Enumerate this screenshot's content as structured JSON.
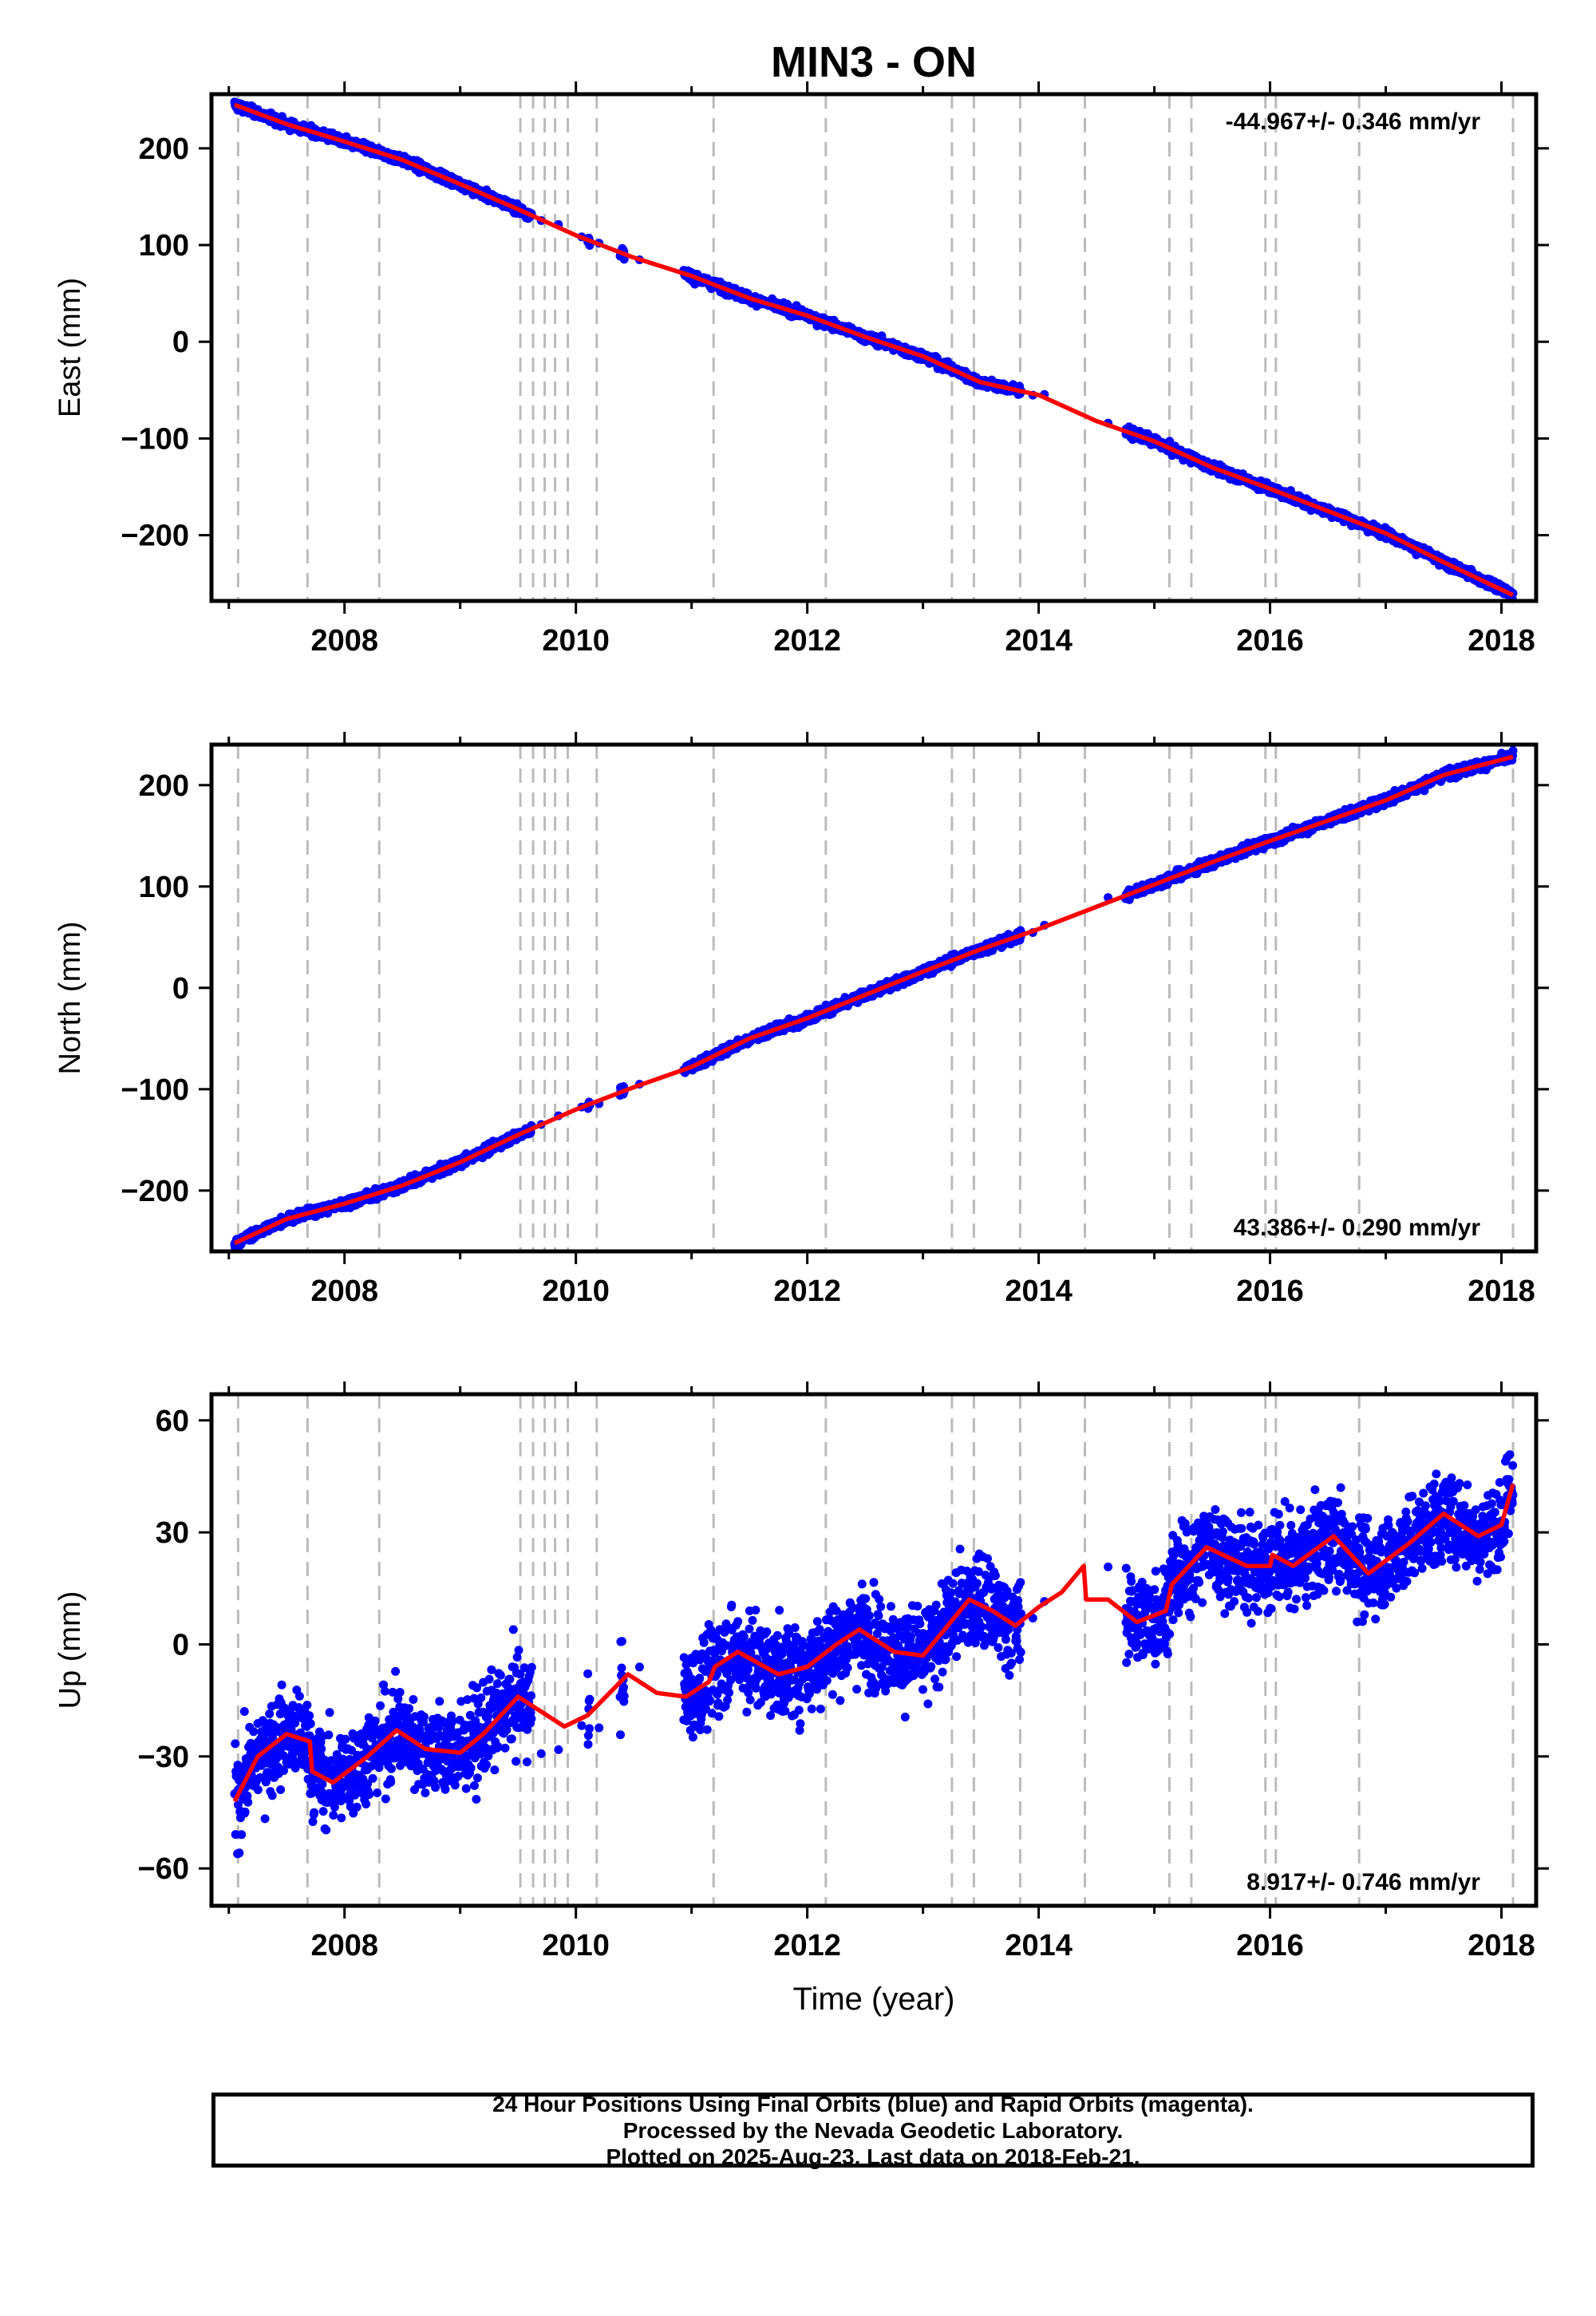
{
  "title": "MIN3 - ON",
  "xlabel": "Time (year)",
  "colors": {
    "data": "#0000ff",
    "model": "#ff0000",
    "break_lines": "#bbbbbb",
    "frame": "#000000"
  },
  "caption": {
    "line1": "24 Hour Positions Using Final Orbits (blue) and Rapid Orbits (magenta).",
    "line2": "Processed by the Nevada Geodetic Laboratory.",
    "line3": "Plotted on 2025-Aug-23. Last data on 2018-Feb-21."
  },
  "chart_data": [
    {
      "type": "scatter",
      "title": "MIN3 - ON",
      "ylabel": "East (mm)",
      "xlabel": "",
      "xlim": [
        2006.85,
        2018.3
      ],
      "ylim": [
        -268,
        256
      ],
      "xticks": [
        2008,
        2010,
        2012,
        2014,
        2016,
        2018
      ],
      "yticks": [
        -200,
        -100,
        0,
        100,
        200
      ],
      "rate_label": "-44.967+/- 0.346 mm/yr",
      "rate_position": "top-right",
      "grid": false,
      "series": [
        {
          "x": [
            2007.05,
            2007.5,
            2008.0,
            2008.5,
            2009.0,
            2009.5,
            2010.0,
            2010.5,
            2011.0,
            2011.5,
            2012.0,
            2012.5,
            2013.0,
            2013.5,
            2014.0,
            2014.5,
            2015.0,
            2015.5,
            2016.0,
            2016.5,
            2017.0,
            2017.5,
            2018.1
          ],
          "y": [
            245,
            225,
            207,
            188,
            163,
            137,
            110,
            87,
            68,
            45,
            27,
            5,
            -15,
            -42,
            -55,
            -82,
            -103,
            -130,
            -152,
            -175,
            -198,
            -228,
            -262
          ]
        }
      ]
    },
    {
      "type": "scatter",
      "title": "",
      "ylabel": "North (mm)",
      "xlabel": "",
      "xlim": [
        2006.85,
        2018.3
      ],
      "ylim": [
        -260,
        240
      ],
      "xticks": [
        2008,
        2010,
        2012,
        2014,
        2016,
        2018
      ],
      "yticks": [
        -200,
        -100,
        0,
        100,
        200
      ],
      "rate_label": "43.386+/- 0.290 mm/yr",
      "rate_position": "bottom-right",
      "grid": false,
      "series": [
        {
          "x": [
            2007.05,
            2007.5,
            2008.0,
            2008.5,
            2009.0,
            2009.5,
            2010.0,
            2010.5,
            2011.0,
            2011.5,
            2012.0,
            2012.5,
            2013.0,
            2013.5,
            2014.0,
            2014.5,
            2015.0,
            2015.5,
            2016.0,
            2016.5,
            2017.0,
            2017.5,
            2018.1
          ],
          "y": [
            -252,
            -228,
            -213,
            -195,
            -172,
            -145,
            -120,
            -98,
            -78,
            -50,
            -30,
            -7,
            16,
            38,
            58,
            80,
            102,
            124,
            145,
            165,
            185,
            210,
            228
          ]
        }
      ]
    },
    {
      "type": "scatter",
      "title": "",
      "ylabel": "Up (mm)",
      "xlabel": "Time (year)",
      "xlim": [
        2006.85,
        2018.3
      ],
      "ylim": [
        -70,
        67
      ],
      "xticks": [
        2008,
        2010,
        2012,
        2014,
        2016,
        2018
      ],
      "yticks": [
        -60,
        -30,
        0,
        30,
        60
      ],
      "rate_label": "8.917+/- 0.746 mm/yr",
      "rate_position": "bottom-right",
      "grid": false,
      "series": [
        {
          "x": [
            2007.05,
            2007.25,
            2007.5,
            2007.7,
            2007.72,
            2007.9,
            2008.2,
            2008.45,
            2008.7,
            2009.0,
            2009.2,
            2009.5,
            2009.7,
            2009.9,
            2010.1,
            2010.45,
            2010.7,
            2010.95,
            2011.15,
            2011.2,
            2011.4,
            2011.75,
            2012.0,
            2012.25,
            2012.45,
            2012.75,
            2013.0,
            2013.4,
            2013.6,
            2013.8,
            2014.0,
            2014.2,
            2014.39,
            2014.41,
            2014.6,
            2014.85,
            2015.1,
            2015.15,
            2015.45,
            2015.8,
            2016.0,
            2016.02,
            2016.2,
            2016.55,
            2016.85,
            2017.2,
            2017.5,
            2017.8,
            2018.0,
            2018.1
          ],
          "y": [
            -42,
            -30,
            -24,
            -26,
            -34,
            -37,
            -30,
            -23,
            -28,
            -29,
            -24,
            -14,
            -18,
            -22,
            -19,
            -8,
            -13,
            -14,
            -10,
            -6,
            -2,
            -8,
            -6,
            0,
            4,
            -2,
            -3,
            12,
            9,
            5,
            10,
            14,
            21,
            12,
            12,
            6,
            9,
            16,
            26,
            21,
            21,
            24,
            21,
            29,
            19,
            27,
            35,
            29,
            32,
            43
          ]
        }
      ]
    }
  ]
}
